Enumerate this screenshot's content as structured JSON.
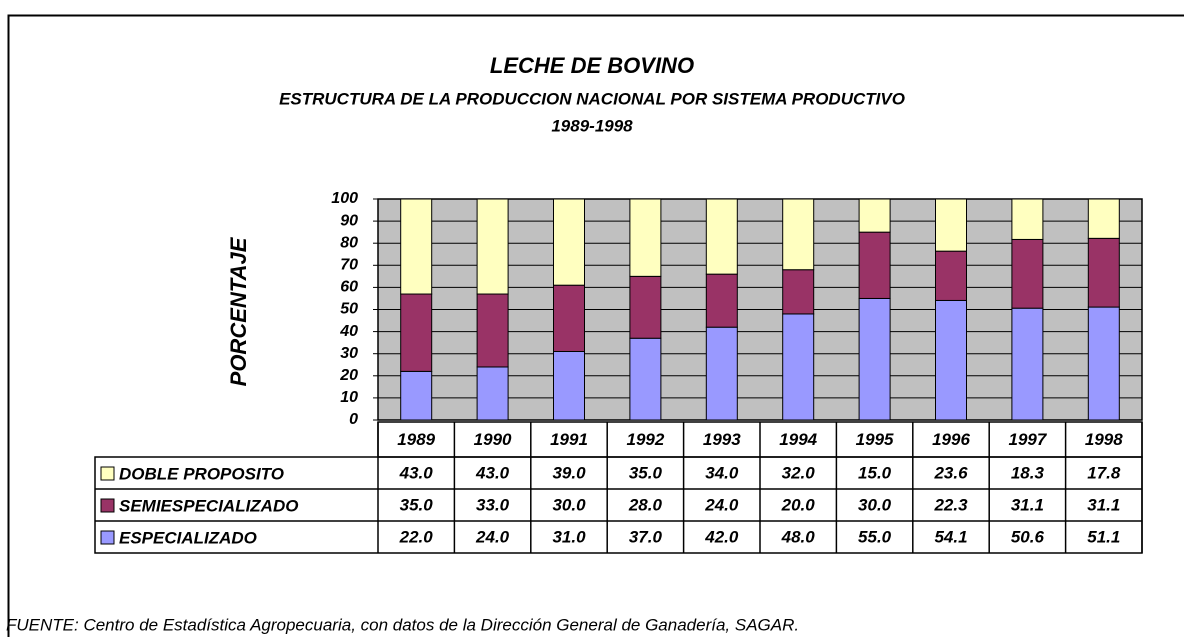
{
  "chart_data": {
    "type": "stacked_bar",
    "title": "LECHE DE BOVINO",
    "subtitle": "ESTRUCTURA DE LA PRODUCCION NACIONAL POR SISTEMA PRODUCTIVO",
    "period": "1989-1998",
    "y_label": "PORCENTAJE",
    "source": "FUENTE: Centro de Estadística Agropecuaria, con datos de la Dirección General de Ganadería, SAGAR.",
    "categories": [
      "1989",
      "1990",
      "1991",
      "1992",
      "1993",
      "1994",
      "1995",
      "1996",
      "1997",
      "1998"
    ],
    "series": [
      {
        "name": "DOBLE PROPOSITO",
        "color": "#ffffc0",
        "values": [
          43,
          43,
          39,
          35,
          34,
          32,
          15,
          23.6,
          18.3,
          17.8
        ],
        "value_labels": [
          "43.0",
          "43.0",
          "39.0",
          "35.0",
          "34.0",
          "32.0",
          "15.0",
          "23.6",
          "18.3",
          "17.8"
        ]
      },
      {
        "name": "SEMIESPECIALIZADO",
        "color": "#993366",
        "values": [
          35,
          33,
          30,
          28,
          24,
          20,
          30,
          22.3,
          31.1,
          31.1
        ],
        "value_labels": [
          "35.0",
          "33.0",
          "30.0",
          "28.0",
          "24.0",
          "20.0",
          "30.0",
          "22.3",
          "31.1",
          "31.1"
        ]
      },
      {
        "name": "ESPECIALIZADO",
        "color": "#9999ff",
        "values": [
          22,
          24,
          31,
          37,
          42,
          48,
          55,
          54.1,
          50.6,
          51.1
        ],
        "value_labels": [
          "22.0",
          "24.0",
          "31.0",
          "37.0",
          "42.0",
          "48.0",
          "55.0",
          "54.1",
          "50.6",
          "51.1"
        ]
      }
    ],
    "ylim": [
      0,
      100
    ],
    "yticks": [
      0,
      10,
      20,
      30,
      40,
      50,
      60,
      70,
      80,
      90,
      100
    ],
    "grid": true
  }
}
